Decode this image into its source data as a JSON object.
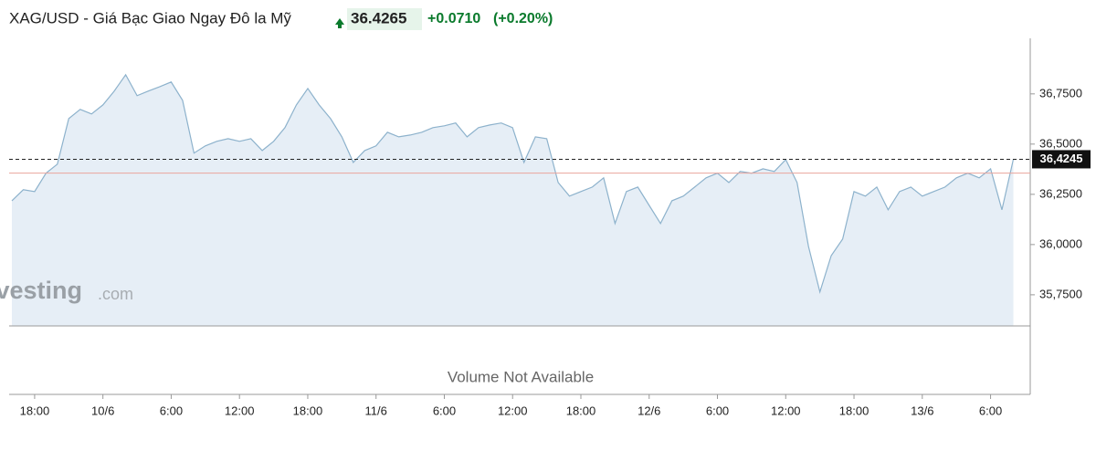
{
  "chart_data": {
    "type": "area",
    "title": "XAG/USD - Giá Bạc Giao Ngay Đô la Mỹ",
    "last_price": 36.4265,
    "change": {
      "value": 0.071,
      "label": "+0.0710"
    },
    "change_pct": {
      "value": 0.2,
      "label": "(+0.20%)"
    },
    "watermark": {
      "brand": "Investing",
      "suffix": ".com"
    },
    "volume_note": "Volume Not Available",
    "current": {
      "value": 36.4245,
      "label": "36,4245"
    },
    "prev_close": 36.3555,
    "color": "#8db2cc",
    "fill": "#e6eef6",
    "ref_color": "#eaa59c",
    "ylim": [
      35.595,
      36.99
    ],
    "yticks": [
      {
        "value": 35.75,
        "label": "35,7500"
      },
      {
        "value": 36.0,
        "label": "36,0000"
      },
      {
        "value": 36.25,
        "label": "36,2500"
      },
      {
        "value": 36.5,
        "label": "36,5000"
      },
      {
        "value": 36.75,
        "label": "36,7500"
      }
    ],
    "categories": [
      null,
      null,
      "18:00",
      null,
      null,
      null,
      null,
      null,
      "10/6",
      null,
      null,
      null,
      null,
      null,
      "6:00",
      null,
      null,
      null,
      null,
      null,
      "12:00",
      null,
      null,
      null,
      null,
      null,
      "18:00",
      null,
      null,
      null,
      null,
      null,
      "11/6",
      null,
      null,
      null,
      null,
      null,
      "6:00",
      null,
      null,
      null,
      null,
      null,
      "12:00",
      null,
      null,
      null,
      null,
      null,
      "18:00",
      null,
      null,
      null,
      null,
      null,
      "12/6",
      null,
      null,
      null,
      null,
      null,
      "6:00",
      null,
      null,
      null,
      null,
      null,
      "12:00",
      null,
      null,
      null,
      null,
      null,
      "18:00",
      null,
      null,
      null,
      null,
      null,
      "13/6",
      null,
      null,
      null,
      null,
      null,
      "6:00",
      null,
      null
    ],
    "values": [
      36.218,
      36.273,
      36.264,
      36.355,
      36.4,
      36.627,
      36.673,
      36.65,
      36.695,
      36.764,
      36.845,
      36.741,
      36.764,
      36.786,
      36.809,
      36.718,
      36.455,
      36.491,
      36.514,
      36.527,
      36.514,
      36.527,
      36.468,
      36.514,
      36.582,
      36.695,
      36.777,
      36.695,
      36.627,
      36.536,
      36.409,
      36.468,
      36.491,
      36.559,
      36.536,
      36.545,
      36.559,
      36.582,
      36.591,
      36.605,
      36.536,
      36.582,
      36.595,
      36.605,
      36.582,
      36.409,
      36.536,
      36.527,
      36.309,
      36.241,
      36.264,
      36.286,
      36.332,
      36.105,
      36.264,
      36.286,
      36.195,
      36.105,
      36.218,
      36.241,
      36.286,
      36.332,
      36.355,
      36.309,
      36.364,
      36.355,
      36.377,
      36.364,
      36.423,
      36.309,
      35.991,
      35.764,
      35.945,
      36.027,
      36.264,
      36.241,
      36.286,
      36.173,
      36.264,
      36.286,
      36.241,
      36.264,
      36.286,
      36.332,
      36.355,
      36.332,
      36.377,
      36.173,
      36.4245
    ]
  }
}
